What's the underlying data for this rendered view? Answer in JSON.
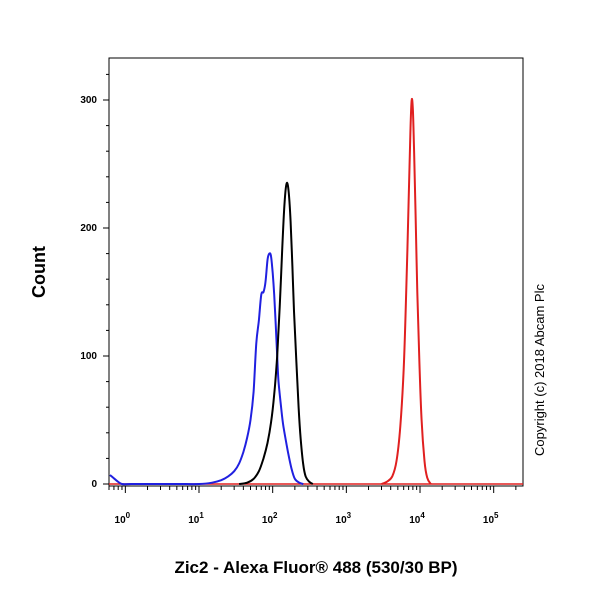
{
  "chart_data": {
    "type": "line",
    "title": "",
    "xlabel": "Zic2 - Alexa Fluor® 488 (530/30 BP)",
    "ylabel": "Count",
    "x_scale": "log",
    "xlim": [
      0.6,
      250000
    ],
    "ylim": [
      0,
      300
    ],
    "x_ticks": [
      {
        "base": "10",
        "exp": "0",
        "value": 1
      },
      {
        "base": "10",
        "exp": "1",
        "value": 10
      },
      {
        "base": "10",
        "exp": "2",
        "value": 100
      },
      {
        "base": "10",
        "exp": "3",
        "value": 1000
      },
      {
        "base": "10",
        "exp": "4",
        "value": 10000
      },
      {
        "base": "10",
        "exp": "5",
        "value": 100000
      }
    ],
    "y_ticks": [
      0,
      100,
      200,
      300
    ],
    "grid": false,
    "legend": "none",
    "annotation": "Copyright (c) 2018 Abcam Plc",
    "series": [
      {
        "color": "#2020e0",
        "x": [
          0.62,
          0.75,
          0.9,
          1.2,
          2,
          5,
          10,
          15,
          20,
          25,
          30,
          35,
          40,
          45,
          50,
          55,
          60,
          65,
          70,
          75,
          80,
          85,
          90,
          95,
          100,
          105,
          110,
          115,
          120,
          130,
          140,
          160,
          180,
          200,
          230,
          260
        ],
        "y": [
          7,
          3,
          0,
          0,
          0,
          0,
          0,
          1,
          3,
          6,
          10,
          16,
          25,
          36,
          50,
          72,
          110,
          128,
          148,
          150,
          158,
          175,
          180,
          178,
          165,
          148,
          125,
          100,
          80,
          60,
          45,
          26,
          12,
          4,
          1,
          0
        ]
      },
      {
        "color": "#000000",
        "x": [
          35,
          45,
          55,
          65,
          75,
          85,
          95,
          105,
          115,
          125,
          135,
          145,
          155,
          165,
          175,
          185,
          195,
          210,
          225,
          240,
          260,
          280,
          310,
          350
        ],
        "y": [
          0,
          1,
          4,
          10,
          20,
          32,
          48,
          70,
          100,
          140,
          185,
          220,
          235,
          228,
          205,
          170,
          135,
          95,
          60,
          35,
          15,
          6,
          2,
          0
        ]
      },
      {
        "color": "#e02020",
        "x": [
          3000,
          3600,
          4200,
          4800,
          5400,
          6000,
          6500,
          7000,
          7400,
          7700,
          8000,
          8300,
          8700,
          9200,
          9800,
          10500,
          11500,
          12500,
          14000
        ],
        "y": [
          0,
          2,
          6,
          18,
          45,
          90,
          150,
          220,
          275,
          300,
          292,
          260,
          210,
          150,
          95,
          50,
          18,
          5,
          0
        ]
      }
    ]
  }
}
